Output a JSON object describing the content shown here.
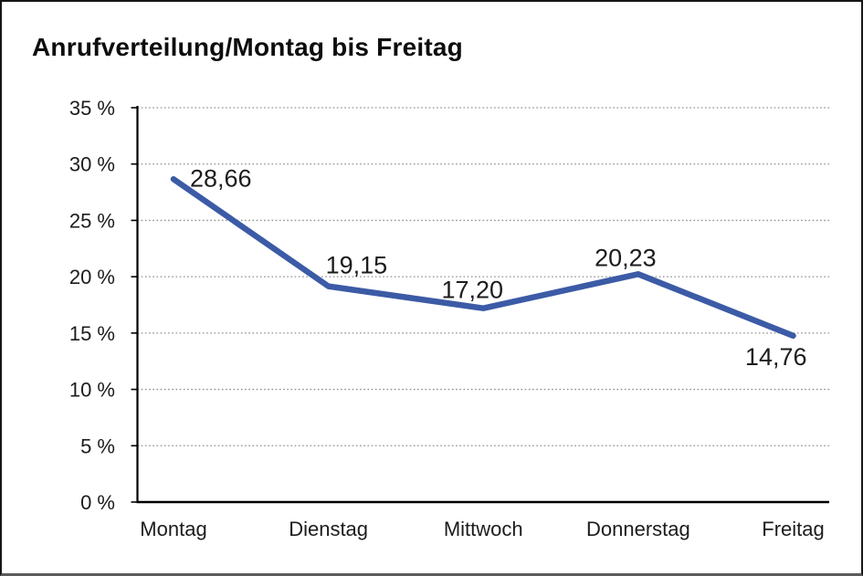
{
  "window": {
    "background_color": "#ffffff",
    "border_color": "#161616"
  },
  "title": "Anrufverteilung/Montag bis Freitag",
  "chart_data": {
    "type": "line",
    "title": "Anrufverteilung/Montag bis Freitag",
    "categories": [
      "Montag",
      "Dienstag",
      "Mittwoch",
      "Donnerstag",
      "Freitag"
    ],
    "values": [
      28.66,
      19.15,
      17.2,
      20.23,
      14.76
    ],
    "point_labels": [
      "28,66",
      "19,15",
      "17,20",
      "20,23",
      "14,76"
    ],
    "series_name": "Anrufverteilung",
    "xlabel": "",
    "ylabel": "",
    "ylim": [
      0,
      35
    ],
    "ytick_step": 5,
    "ytick_labels": [
      "0 %",
      "5 %",
      "10 %",
      "15 %",
      "20 %",
      "25 %",
      "30 %",
      "35 %"
    ],
    "grid": "horizontal-dotted",
    "gridline_color": "#8f8f8f",
    "axis_color": "#000000",
    "text_color": "#1c1c1c",
    "legend": "none",
    "line_color": "#3C5BA6",
    "line_width": 6.5
  }
}
